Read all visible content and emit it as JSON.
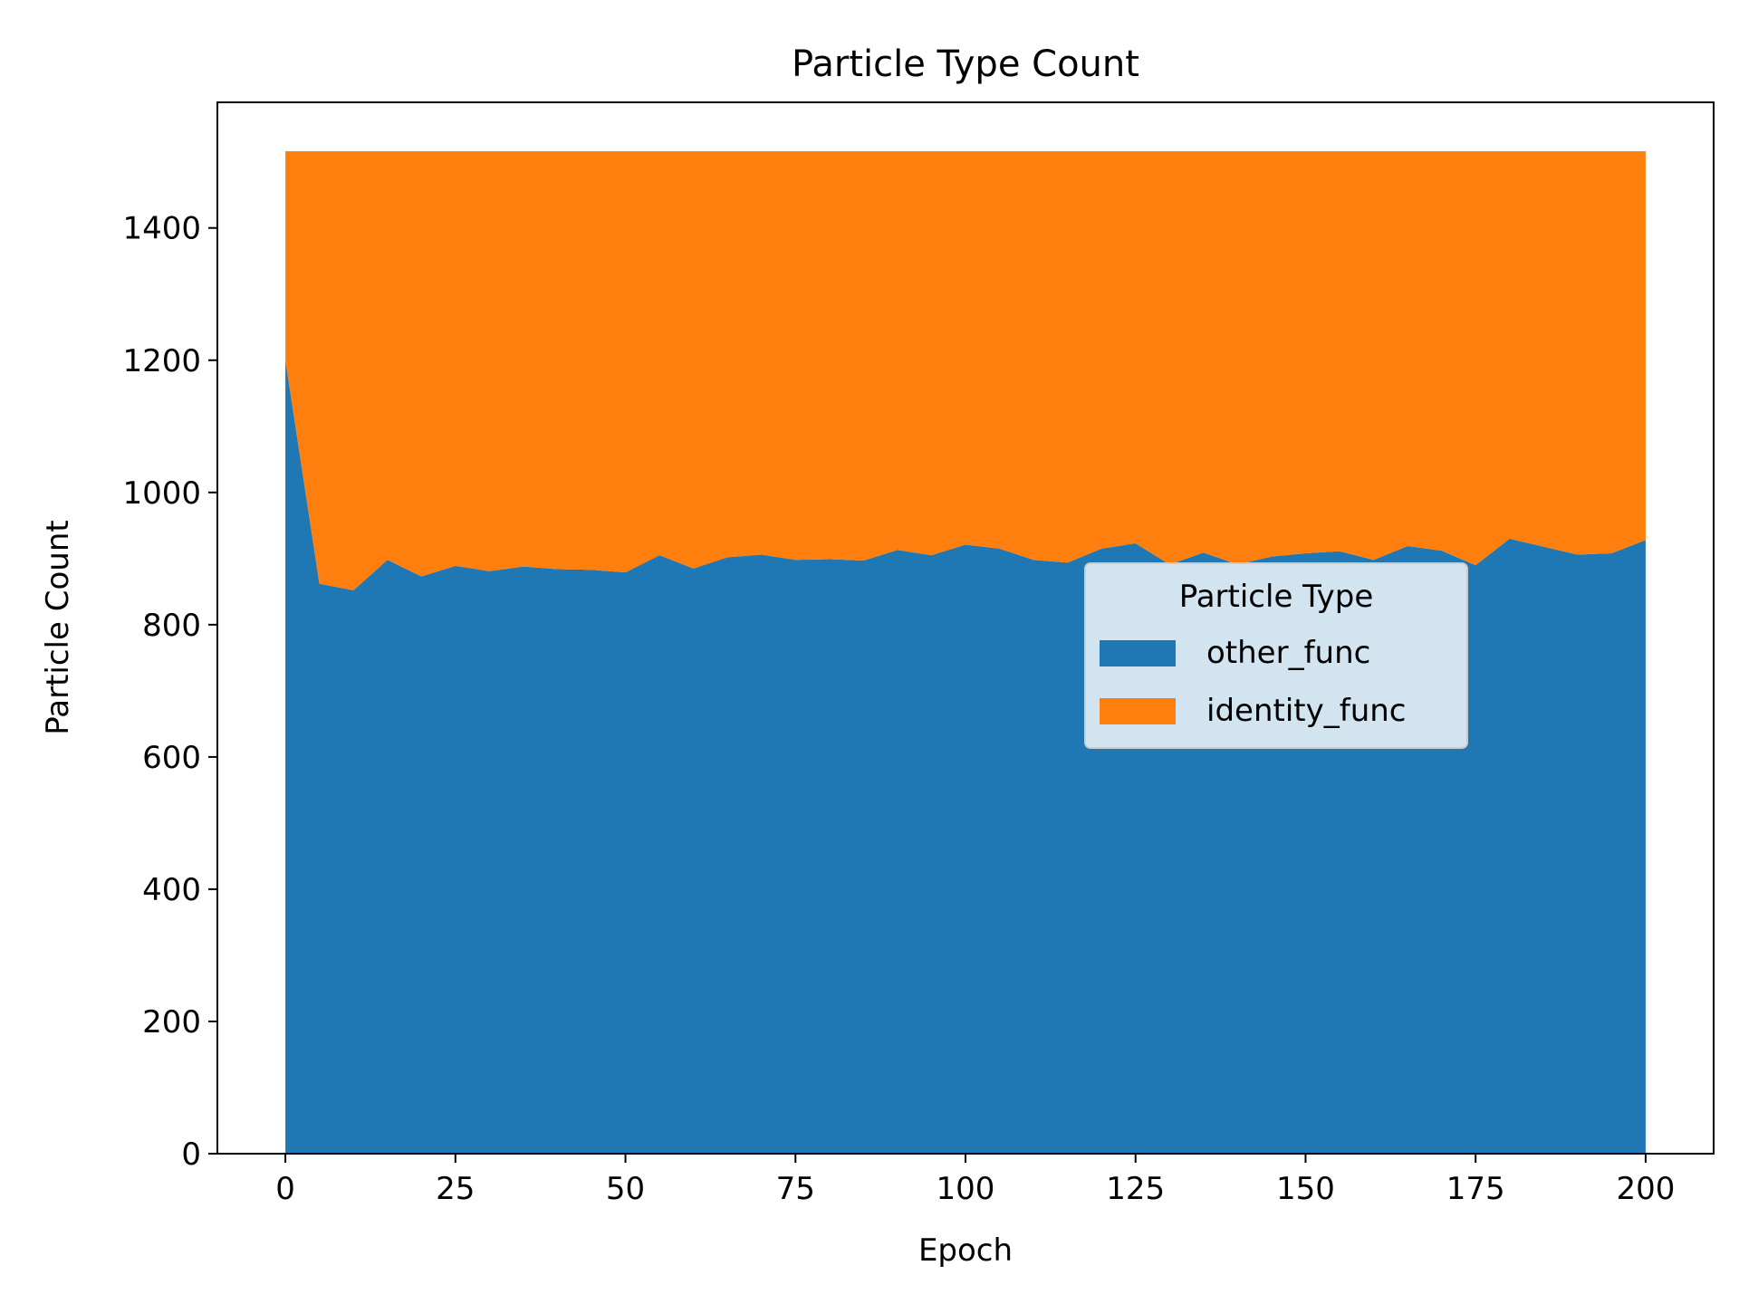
{
  "chart_data": {
    "type": "area",
    "stacked": true,
    "title": "Particle Type Count",
    "xlabel": "Epoch",
    "ylabel": "Particle Count",
    "xlim": [
      -10,
      210
    ],
    "ylim": [
      0,
      1590
    ],
    "xticks": [
      0,
      25,
      50,
      75,
      100,
      125,
      150,
      175,
      200
    ],
    "yticks": [
      0,
      200,
      400,
      600,
      800,
      1000,
      1200,
      1400
    ],
    "x": [
      0,
      5,
      10,
      15,
      20,
      25,
      30,
      35,
      40,
      45,
      50,
      55,
      60,
      65,
      70,
      75,
      80,
      85,
      90,
      95,
      100,
      105,
      110,
      115,
      120,
      125,
      130,
      135,
      140,
      145,
      150,
      155,
      160,
      165,
      170,
      175,
      180,
      185,
      190,
      195,
      200
    ],
    "series": [
      {
        "name": "other_func",
        "color": "#1f77b4",
        "values": [
          1200,
          862,
          852,
          898,
          873,
          889,
          881,
          888,
          884,
          883,
          879,
          905,
          885,
          902,
          906,
          898,
          899,
          897,
          913,
          905,
          921,
          915,
          898,
          894,
          915,
          923,
          891,
          909,
          891,
          903,
          908,
          911,
          898,
          919,
          912,
          890,
          930,
          918,
          906,
          908,
          928
        ]
      },
      {
        "name": "identity_func",
        "color": "#ff7f0e",
        "values": [
          316,
          654,
          664,
          618,
          643,
          627,
          635,
          628,
          632,
          633,
          637,
          611,
          631,
          614,
          610,
          618,
          617,
          619,
          603,
          611,
          595,
          601,
          618,
          622,
          601,
          593,
          625,
          607,
          625,
          613,
          608,
          605,
          618,
          597,
          604,
          626,
          586,
          598,
          610,
          608,
          588
        ]
      }
    ],
    "legend": {
      "title": "Particle Type",
      "placement": "center-right"
    }
  }
}
